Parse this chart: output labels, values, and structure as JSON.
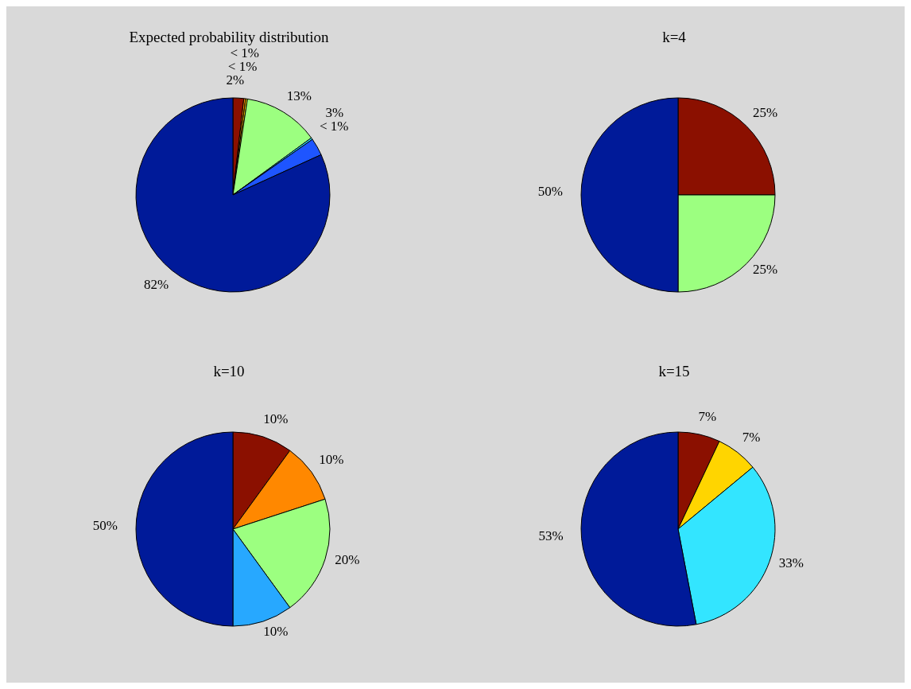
{
  "chart_data": [
    {
      "type": "pie",
      "title": "Expected probability distribution",
      "categories": [
        null,
        null,
        null,
        null,
        null,
        null,
        null
      ],
      "values": [
        1.8,
        0.3,
        0.3,
        12.6,
        0.3,
        2.9,
        81.8
      ],
      "colors": [
        "#8b1000",
        "#ff8800",
        "#ffd500",
        "#9cff80",
        "#30e0ff",
        "#1e55ff",
        "#001a99"
      ],
      "value_labels": [
        "2%",
        "< 1%",
        "< 1%",
        "13%",
        "< 1%",
        "3%",
        "82%"
      ]
    },
    {
      "type": "pie",
      "title": "k=4",
      "categories": [
        null,
        null,
        null
      ],
      "values": [
        25,
        25,
        50
      ],
      "colors": [
        "#8b1000",
        "#9cff80",
        "#001a99"
      ],
      "value_labels": [
        "25%",
        "25%",
        "50%"
      ]
    },
    {
      "type": "pie",
      "title": "k=10",
      "categories": [
        null,
        null,
        null,
        null,
        null
      ],
      "values": [
        10,
        10,
        20,
        10,
        50
      ],
      "colors": [
        "#8b1000",
        "#ff8800",
        "#9cff80",
        "#27a8ff",
        "#001a99"
      ],
      "value_labels": [
        "10%",
        "10%",
        "20%",
        "10%",
        "50%"
      ]
    },
    {
      "type": "pie",
      "title": "k=15",
      "categories": [
        null,
        null,
        null,
        null
      ],
      "values": [
        7,
        7,
        33,
        53
      ],
      "colors": [
        "#8b1000",
        "#ffd500",
        "#33e5ff",
        "#001a99"
      ],
      "value_labels": [
        "7%",
        "7%",
        "33%",
        "53%"
      ]
    }
  ]
}
